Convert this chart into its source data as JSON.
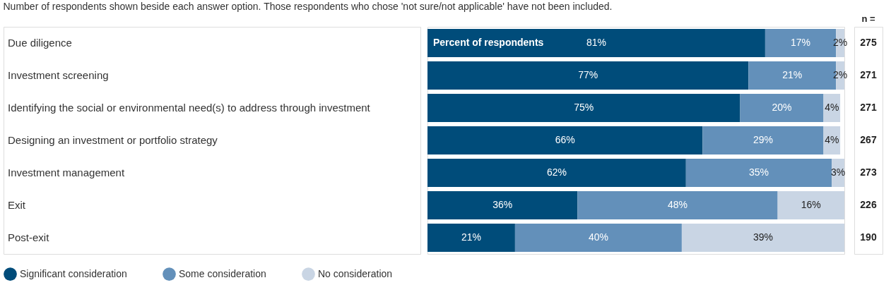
{
  "chart_data": {
    "type": "bar",
    "orientation": "horizontal",
    "stacked": true,
    "legend": "bottom",
    "tick_labels": "y",
    "subtitle": "Number of respondents shown beside each answer option. Those respondents who chose 'not sure/not applicable' have not been included.",
    "categories": [
      "Due diligence",
      "Investment screening",
      "Identifying the social or environmental need(s) to address through investment",
      "Designing an investment or portfolio strategy",
      "Investment management",
      "Exit",
      "Post-exit"
    ],
    "series": [
      {
        "name": "Significant consideration",
        "color": "#004c7a",
        "values": [
          81,
          77,
          75,
          66,
          62,
          36,
          21
        ],
        "value_labels": [
          "81%",
          "77%",
          "75%",
          "66%",
          "62%",
          "36%",
          "21%"
        ]
      },
      {
        "name": "Some consideration",
        "color": "#6390ba",
        "values": [
          17,
          21,
          20,
          29,
          35,
          48,
          40
        ],
        "value_labels": [
          "17%",
          "21%",
          "20%",
          "29%",
          "35%",
          "48%",
          "40%"
        ]
      },
      {
        "name": "No consideration",
        "color": "#c9d5e4",
        "values": [
          2,
          2,
          4,
          4,
          3,
          16,
          39
        ],
        "value_labels": [
          "2%",
          "2%",
          "4%",
          "4%",
          "3%",
          "16%",
          "39%"
        ]
      }
    ],
    "annotations": [
      "n =",
      "Percent of respondents",
      "275",
      "271",
      "271",
      "267",
      "273",
      "226",
      "190"
    ]
  }
}
